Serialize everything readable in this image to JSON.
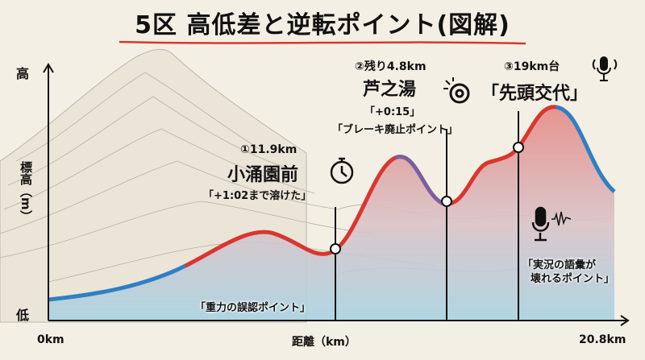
{
  "title": "5区 高低差と逆転ポイント(図解)",
  "axes": {
    "y_top": "高",
    "y_label": "標高（m）",
    "y_bottom": "低",
    "x_start": "0km",
    "x_label": "距離（km）",
    "x_end": "20.8km"
  },
  "points": [
    {
      "marker": "①11.9km",
      "place": "小涌園前",
      "note": "「+1:02まで溶けた」",
      "icon": "stopwatch-icon",
      "caption": "「重力の誤認ポイント」"
    },
    {
      "marker": "②残り4.8km",
      "place": "芦之湯",
      "note": "「+0:15」",
      "note2": "「ブレーキ廃止ポイント」",
      "icon": "brake-icon"
    },
    {
      "marker": "③19km台",
      "place": "「先頭交代」",
      "icon": "microphone-broadcast-icon",
      "caption_line1": "「実況の語彙が",
      "caption_line2": "壊れるポイント」",
      "icon2": "microphone-wave-icon"
    }
  ],
  "colors": {
    "uphill": "#d9362f",
    "downhill": "#2f7fc4",
    "background": "#f3efe4"
  }
}
